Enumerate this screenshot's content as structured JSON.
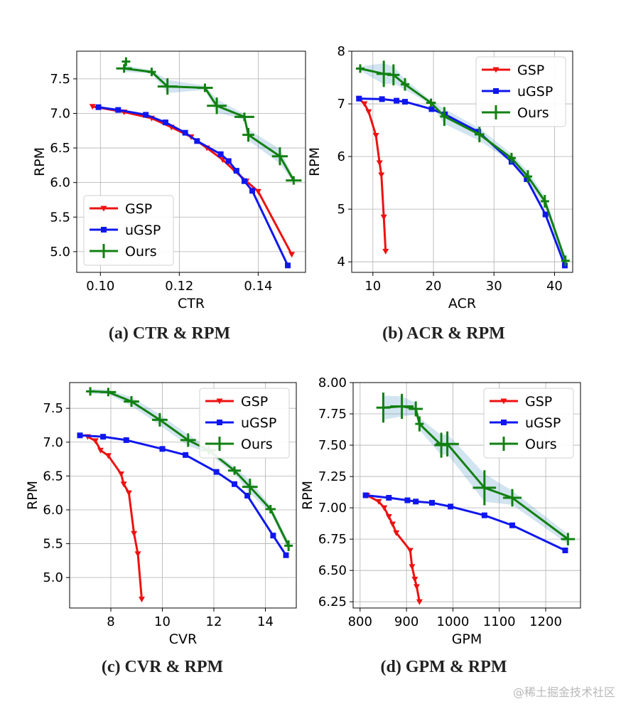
{
  "chart_data": [
    {
      "type": "line",
      "caption": "(a) CTR & RPM",
      "xlabel": "CTR",
      "ylabel": "RPM",
      "xlim": [
        0.094,
        0.152
      ],
      "ylim": [
        4.7,
        7.9
      ],
      "xticks": [
        0.1,
        0.12,
        0.14
      ],
      "xtick_labels": [
        "0.10",
        "0.12",
        "0.14"
      ],
      "yticks": [
        5.0,
        5.5,
        6.0,
        6.5,
        7.0,
        7.5
      ],
      "ytick_labels": [
        "5.0",
        "5.5",
        "6.0",
        "6.5",
        "7.0",
        "7.5"
      ],
      "legend_position": "lower-left",
      "series": [
        {
          "name": "GSP",
          "color": "#ee1111",
          "marker": "tri_down",
          "x": [
            0.098,
            0.106,
            0.113,
            0.118,
            0.123,
            0.127,
            0.131,
            0.134,
            0.137,
            0.14,
            0.1485
          ],
          "y": [
            7.1,
            7.02,
            6.93,
            6.8,
            6.66,
            6.5,
            6.33,
            6.17,
            6.02,
            5.87,
            4.96
          ]
        },
        {
          "name": "uGSP",
          "color": "#0f17ee",
          "marker": "square",
          "x": [
            0.0995,
            0.1045,
            0.1115,
            0.1165,
            0.1215,
            0.1245,
            0.1305,
            0.1325,
            0.1345,
            0.1365,
            0.1385,
            0.1475
          ],
          "y": [
            7.09,
            7.05,
            6.98,
            6.87,
            6.72,
            6.6,
            6.41,
            6.31,
            6.17,
            6.02,
            5.88,
            4.8
          ]
        },
        {
          "name": "Ours",
          "color": "#118011",
          "marker": "plus",
          "x": [
            0.1065,
            0.106,
            0.113,
            0.117,
            0.1265,
            0.1295,
            0.1365,
            0.1375,
            0.1455,
            0.149
          ],
          "y": [
            7.75,
            7.65,
            7.6,
            7.39,
            7.37,
            7.11,
            6.95,
            6.69,
            6.38,
            6.03
          ],
          "err_x": [
            0.001,
            0.002,
            0.001,
            0.0025,
            0.002,
            0.0025,
            0.0025,
            0.0015,
            0.002,
            0.002
          ],
          "err_y": [
            0.05,
            0.06,
            0.03,
            0.12,
            0.04,
            0.12,
            0.05,
            0.1,
            0.13,
            0.05
          ]
        }
      ]
    },
    {
      "type": "line",
      "caption": "(b) ACR & RPM",
      "xlabel": "ACR",
      "ylabel": "RPM",
      "xlim": [
        6.5,
        43.0
      ],
      "ylim": [
        3.8,
        8.0
      ],
      "xticks": [
        10,
        20,
        30,
        40
      ],
      "xtick_labels": [
        "10",
        "20",
        "30",
        "40"
      ],
      "yticks": [
        4,
        5,
        6,
        7,
        8
      ],
      "ytick_labels": [
        "4",
        "5",
        "6",
        "7",
        "8"
      ],
      "legend_position": "top-right",
      "series": [
        {
          "name": "GSP",
          "color": "#ee1111",
          "marker": "tri_down",
          "x": [
            7.7,
            8.6,
            9.3,
            10.5,
            11.1,
            11.4,
            11.8,
            12.1
          ],
          "y": [
            7.1,
            7.0,
            6.85,
            6.4,
            5.88,
            5.65,
            4.85,
            4.2
          ]
        },
        {
          "name": "uGSP",
          "color": "#0f17ee",
          "marker": "square",
          "x": [
            7.7,
            11.5,
            13.9,
            15.3,
            19.7,
            21.9,
            27.4,
            32.9,
            35.4,
            38.5,
            41.7
          ],
          "y": [
            7.1,
            7.09,
            7.06,
            7.04,
            6.9,
            6.8,
            6.47,
            5.9,
            5.57,
            4.9,
            3.93
          ]
        },
        {
          "name": "Ours",
          "color": "#118011",
          "marker": "plus",
          "x": [
            7.9,
            11.8,
            13.4,
            15.3,
            19.6,
            21.8,
            27.6,
            32.9,
            35.6,
            38.4,
            41.8
          ],
          "y": [
            7.67,
            7.57,
            7.55,
            7.37,
            7.02,
            6.76,
            6.42,
            5.97,
            5.62,
            5.15,
            4.02
          ],
          "err_x": [
            0.5,
            1.2,
            1.0,
            0.7,
            0.8,
            0.6,
            0.8,
            0.5,
            0.6,
            0.5,
            0.4
          ],
          "err_y": [
            0.05,
            0.25,
            0.2,
            0.12,
            0.05,
            0.18,
            0.15,
            0.1,
            0.12,
            0.12,
            0.1
          ]
        }
      ]
    },
    {
      "type": "line",
      "caption": "(c) CVR & RPM",
      "xlabel": "CVR",
      "ylabel": "RPM",
      "xlim": [
        6.4,
        15.2
      ],
      "ylim": [
        4.55,
        7.88
      ],
      "xticks": [
        8,
        10,
        12,
        14
      ],
      "xtick_labels": [
        "8",
        "10",
        "12",
        "14"
      ],
      "yticks": [
        5.0,
        5.5,
        6.0,
        6.5,
        7.0,
        7.5
      ],
      "ytick_labels": [
        "5.0",
        "5.5",
        "6.0",
        "6.5",
        "7.0",
        "7.5"
      ],
      "legend_position": "top-right",
      "series": [
        {
          "name": "GSP",
          "color": "#ee1111",
          "marker": "tri_down",
          "x": [
            7.1,
            7.4,
            7.6,
            7.9,
            8.4,
            8.5,
            8.7,
            8.9,
            9.05,
            9.2
          ],
          "y": [
            7.08,
            7.02,
            6.88,
            6.8,
            6.53,
            6.38,
            6.25,
            5.65,
            5.35,
            4.68
          ]
        },
        {
          "name": "uGSP",
          "color": "#0f17ee",
          "marker": "square",
          "x": [
            6.8,
            7.7,
            8.6,
            10.0,
            10.9,
            12.1,
            12.8,
            13.3,
            14.3,
            14.8
          ],
          "y": [
            7.1,
            7.08,
            7.03,
            6.9,
            6.81,
            6.56,
            6.38,
            6.21,
            5.62,
            5.33
          ]
        },
        {
          "name": "Ours",
          "color": "#118011",
          "marker": "plus",
          "x": [
            7.2,
            7.9,
            8.8,
            9.9,
            11.0,
            11.8,
            12.8,
            13.4,
            14.2,
            14.9
          ],
          "y": [
            7.75,
            7.74,
            7.6,
            7.33,
            7.03,
            6.88,
            6.58,
            6.34,
            6.01,
            5.47
          ],
          "err_x": [
            0.15,
            0.3,
            0.3,
            0.3,
            0.3,
            0.3,
            0.25,
            0.3,
            0.2,
            0.15
          ],
          "err_y": [
            0.05,
            0.04,
            0.08,
            0.1,
            0.1,
            0.06,
            0.06,
            0.12,
            0.06,
            0.08
          ]
        }
      ]
    },
    {
      "type": "line",
      "caption": "(d) GPM & RPM",
      "xlabel": "GPM",
      "ylabel": "RPM",
      "xlim": [
        785,
        1275
      ],
      "ylim": [
        6.2,
        8.0
      ],
      "xticks": [
        800,
        900,
        1000,
        1100,
        1200
      ],
      "xtick_labels": [
        "800",
        "900",
        "1000",
        "1100",
        "1200"
      ],
      "yticks": [
        6.25,
        6.5,
        6.75,
        7.0,
        7.25,
        7.5,
        7.75,
        8.0
      ],
      "ytick_labels": [
        "6.25",
        "6.50",
        "6.75",
        "7.00",
        "7.25",
        "7.50",
        "7.75",
        "8.00"
      ],
      "legend_position": "top-right",
      "series": [
        {
          "name": "GSP",
          "color": "#ee1111",
          "marker": "tri_down",
          "x": [
            815,
            840,
            852,
            862,
            870,
            878,
            908,
            912,
            918,
            922,
            928
          ],
          "y": [
            7.1,
            7.05,
            7.0,
            6.93,
            6.87,
            6.8,
            6.66,
            6.53,
            6.43,
            6.37,
            6.25
          ]
        },
        {
          "name": "uGSP",
          "color": "#0f17ee",
          "marker": "square",
          "x": [
            812,
            862,
            902,
            920,
            955,
            995,
            1068,
            1128,
            1242
          ],
          "y": [
            7.1,
            7.08,
            7.06,
            7.05,
            7.04,
            7.01,
            6.94,
            6.86,
            6.66
          ]
        },
        {
          "name": "Ours",
          "color": "#118011",
          "marker": "plus",
          "x": [
            850,
            890,
            920,
            928,
            975,
            988,
            1068,
            1128,
            1248
          ],
          "y": [
            7.8,
            7.81,
            7.79,
            7.67,
            7.5,
            7.51,
            7.16,
            7.08,
            6.75
          ],
          "err_x": [
            15,
            25,
            15,
            5,
            15,
            25,
            25,
            20,
            15
          ],
          "err_y": [
            0.12,
            0.1,
            0.06,
            0.06,
            0.1,
            0.1,
            0.14,
            0.07,
            0.05
          ]
        }
      ]
    }
  ],
  "watermark": "@稀土掘金技术社区"
}
